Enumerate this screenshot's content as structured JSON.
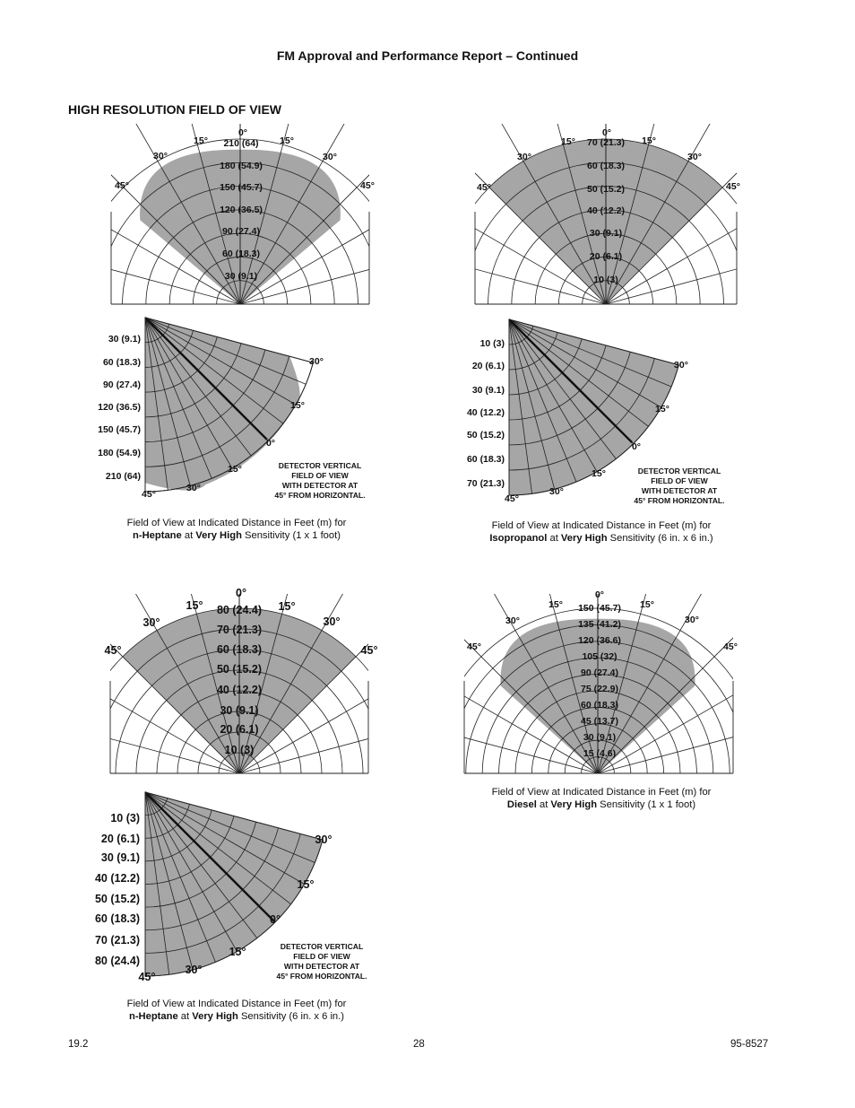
{
  "page": {
    "header": "FM Approval and Performance Report – Continued",
    "section_title": "HIGH RESOLUTION FIELD OF VIEW",
    "footer": {
      "left": "19.2",
      "center": "28",
      "right": "95-8527"
    }
  },
  "detector_note": [
    "DETECTOR VERTICAL",
    "FIELD OF VIEW",
    "WITH DETECTOR AT",
    "45° FROM HORIZONTAL."
  ],
  "figures": [
    {
      "id": "fig-nheptane-1ft",
      "angles": {
        "zero": "0°",
        "d15": "15°",
        "d30": "30°",
        "d45": "45°"
      },
      "horizontal_ring_labels": [
        "210 (64)",
        "180 (54.9)",
        "150 (45.7)",
        "120 (36.5)",
        "90 (27.4)",
        "60 (18.3)",
        "30 (9.1)"
      ],
      "vertical_ring_labels": [
        "30 (9.1)",
        "60 (18.3)",
        "90 (27.4)",
        "120 (36.5)",
        "150 (45.7)",
        "180 (54.9)",
        "210 (64)"
      ],
      "caption": {
        "line1": "Field of View at Indicated Distance in Feet (m) for",
        "fuel": "n-Heptane",
        "at": "at",
        "level": "Very High",
        "tail": "Sensitivity (1 x 1 foot)"
      }
    },
    {
      "id": "fig-isopropanol-6in",
      "angles": {
        "zero": "0°",
        "d15": "15°",
        "d30": "30°",
        "d45": "45°"
      },
      "horizontal_ring_labels": [
        "70 (21.3)",
        "60 (18.3)",
        "50 (15.2)",
        "40 (12.2)",
        "30 (9.1)",
        "20 (6.1)",
        "10 (3)"
      ],
      "vertical_ring_labels": [
        "10 (3)",
        "20 (6.1)",
        "30 (9.1)",
        "40 (12.2)",
        "50 (15.2)",
        "60 (18.3)",
        "70 (21.3)"
      ],
      "caption": {
        "line1": "Field of View at Indicated Distance in Feet (m) for",
        "fuel": "Isopropanol",
        "at": "at",
        "level": "Very High",
        "tail": "Sensitivity (6 in. x 6 in.)"
      }
    },
    {
      "id": "fig-nheptane-6in",
      "angles": {
        "zero": "0°",
        "d15": "15°",
        "d30": "30°",
        "d45": "45°"
      },
      "horizontal_ring_labels": [
        "80 (24.4)",
        "70 (21.3)",
        "60 (18.3)",
        "50 (15.2)",
        "40 (12.2)",
        "30 (9.1)",
        "20 (6.1)",
        "10 (3)"
      ],
      "vertical_ring_labels": [
        "10 (3)",
        "20 (6.1)",
        "30 (9.1)",
        "40 (12.2)",
        "50 (15.2)",
        "60 (18.3)",
        "70 (21.3)",
        "80 (24.4)"
      ],
      "caption": {
        "line1": "Field of View at Indicated Distance in Feet (m) for",
        "fuel": "n-Heptane",
        "at": "at",
        "level": "Very High",
        "tail": "Sensitivity (6 in. x 6 in.)"
      }
    },
    {
      "id": "fig-diesel-1ft",
      "angles": {
        "zero": "0°",
        "d15": "15°",
        "d30": "30°",
        "d45": "45°"
      },
      "horizontal_ring_labels": [
        "150 (45.7)",
        "135 (41.2)",
        "120 (36.6)",
        "105 (32)",
        "90 (27.4)",
        "75 (22.9)",
        "60 (18.3)",
        "45 (13.7)",
        "30 (9.1)",
        "15 (4.6)"
      ],
      "caption": {
        "line1": "Field of View at Indicated Distance in Feet (m) for",
        "fuel": "Diesel",
        "at": "at",
        "level": "Very High",
        "tail": "Sensitivity (1 x 1 foot)"
      }
    }
  ]
}
